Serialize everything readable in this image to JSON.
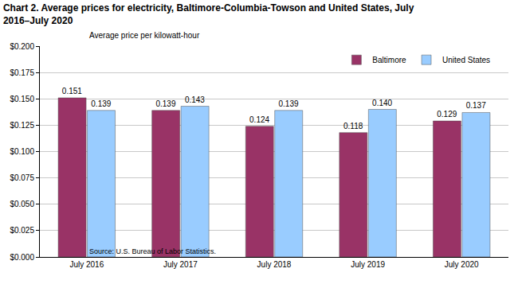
{
  "chart_data": {
    "type": "bar",
    "title": "Chart 2. Average prices for electricity, Baltimore-Columbia-Towson and United States, July 2016–July 2020",
    "ylabel": "Average price per kilowatt-hour",
    "note": "Source: U.S. Bureau of Labor Statistics.",
    "categories": [
      "July 2016",
      "July 2017",
      "July 2018",
      "July 2019",
      "July 2020"
    ],
    "series": [
      {
        "name": "Baltimore",
        "color": "#993366",
        "values": [
          0.151,
          0.139,
          0.124,
          0.118,
          0.129
        ],
        "value_labels": [
          "0.151",
          "0.139",
          "0.124",
          "0.118",
          "0.129"
        ]
      },
      {
        "name": "United States",
        "color": "#99ccff",
        "values": [
          0.139,
          0.143,
          0.139,
          0.14,
          0.137
        ],
        "value_labels": [
          "0.139",
          "0.143",
          "0.139",
          "0.140",
          "0.137"
        ]
      }
    ],
    "ylim": [
      0,
      0.2
    ],
    "yticks": [
      {
        "value": 0,
        "label": "$0.000"
      },
      {
        "value": 0.025,
        "label": "$0.025"
      },
      {
        "value": 0.05,
        "label": "$0.050"
      },
      {
        "value": 0.075,
        "label": "$0.075"
      },
      {
        "value": 0.1,
        "label": "$0.100"
      },
      {
        "value": 0.125,
        "label": "$0.125"
      },
      {
        "value": 0.15,
        "label": "$0.150"
      },
      {
        "value": 0.175,
        "label": "$0.175"
      },
      {
        "value": 0.2,
        "label": "$0.200"
      }
    ],
    "grid": true,
    "legend": "upper right",
    "data_labels": true
  }
}
